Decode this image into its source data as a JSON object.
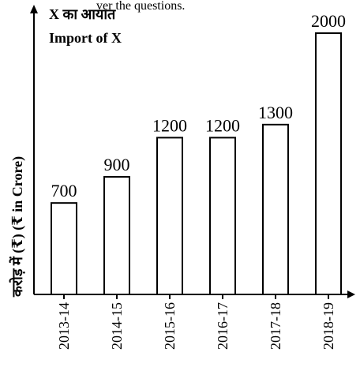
{
  "header_fragment": "ver the questions.",
  "chart_data": {
    "type": "bar",
    "title_hindi": "X का आयात",
    "title": "Import of X",
    "ylabel": "करोड़ में (₹)   (₹ in Crore)",
    "xlabel": "",
    "categories": [
      "2013-14",
      "2014-15",
      "2015-16",
      "2016-17",
      "2017-18",
      "2018-19"
    ],
    "values": [
      700,
      900,
      1200,
      1200,
      1300,
      2000
    ],
    "ylim": [
      0,
      2000
    ],
    "grid": false,
    "colors": {
      "bar_fill": "#ffffff",
      "bar_stroke": "#000000",
      "axis": "#000000",
      "text": "#000000"
    }
  }
}
